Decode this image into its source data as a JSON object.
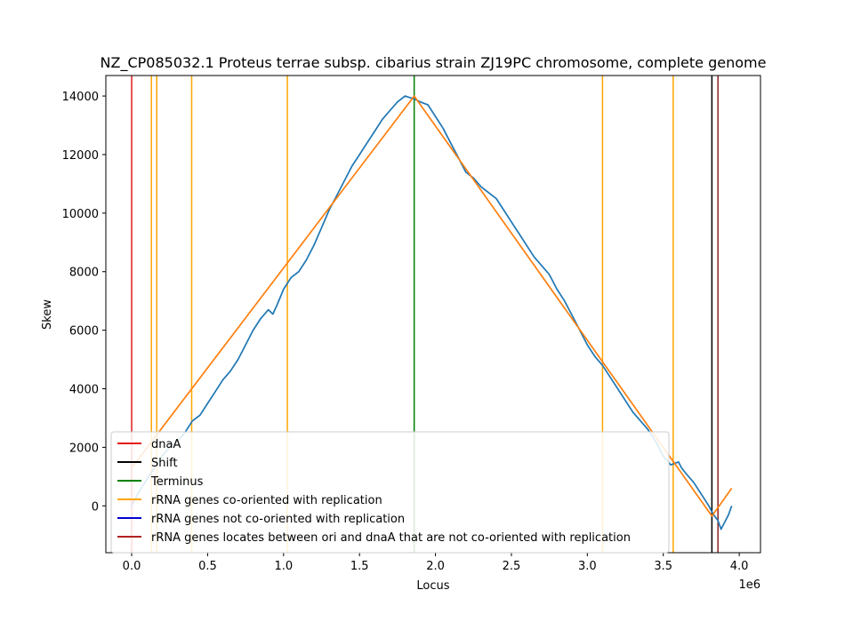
{
  "chart_data": {
    "type": "line",
    "title": "NZ_CP085032.1 Proteus terrae subsp. cibarius strain ZJ19PC chromosome, complete genome",
    "xlabel": "Locus",
    "ylabel": "Skew",
    "x_offset_label": "1e6",
    "xlim": [
      -0.17,
      4.14
    ],
    "ylim": [
      -1600,
      14700
    ],
    "x_scale": 1000000,
    "xticks": [
      0.0,
      0.5,
      1.0,
      1.5,
      2.0,
      2.5,
      3.0,
      3.5,
      4.0
    ],
    "xtick_labels": [
      "0.0",
      "0.5",
      "1.0",
      "1.5",
      "2.0",
      "2.5",
      "3.0",
      "3.5",
      "4.0"
    ],
    "yticks": [
      0,
      2000,
      4000,
      6000,
      8000,
      10000,
      12000,
      14000
    ],
    "ytick_labels": [
      "0",
      "2000",
      "4000",
      "6000",
      "8000",
      "10000",
      "12000",
      "14000"
    ],
    "grid": false,
    "legend_position": "lower-left",
    "series": [
      {
        "color": "#1f77b4",
        "x": [
          0.0,
          0.05,
          0.1,
          0.15,
          0.2,
          0.25,
          0.3,
          0.35,
          0.4,
          0.45,
          0.5,
          0.55,
          0.6,
          0.65,
          0.7,
          0.75,
          0.8,
          0.85,
          0.9,
          0.93,
          0.96,
          1.0,
          1.05,
          1.1,
          1.15,
          1.2,
          1.25,
          1.3,
          1.35,
          1.4,
          1.45,
          1.5,
          1.55,
          1.6,
          1.65,
          1.7,
          1.75,
          1.8,
          1.86,
          1.9,
          1.95,
          2.0,
          2.05,
          2.1,
          2.15,
          2.2,
          2.25,
          2.3,
          2.35,
          2.4,
          2.45,
          2.5,
          2.55,
          2.6,
          2.65,
          2.7,
          2.75,
          2.8,
          2.85,
          2.9,
          2.95,
          3.0,
          3.05,
          3.1,
          3.15,
          3.2,
          3.25,
          3.3,
          3.35,
          3.4,
          3.45,
          3.5,
          3.55,
          3.6,
          3.62,
          3.65,
          3.7,
          3.75,
          3.8,
          3.83,
          3.86,
          3.88,
          3.9,
          3.93,
          3.95
        ],
        "y": [
          0,
          500,
          900,
          1300,
          1700,
          2000,
          2200,
          2500,
          2900,
          3100,
          3500,
          3900,
          4300,
          4600,
          5000,
          5500,
          6000,
          6400,
          6700,
          6550,
          6900,
          7400,
          7800,
          8000,
          8400,
          8900,
          9500,
          10100,
          10600,
          11100,
          11600,
          12000,
          12400,
          12800,
          13200,
          13500,
          13800,
          14000,
          13900,
          13800,
          13700,
          13300,
          12900,
          12400,
          11900,
          11400,
          11200,
          10900,
          10700,
          10500,
          10100,
          9700,
          9300,
          8900,
          8500,
          8200,
          7900,
          7400,
          7000,
          6500,
          6000,
          5500,
          5100,
          4800,
          4400,
          4000,
          3600,
          3200,
          2900,
          2600,
          2200,
          1700,
          1400,
          1500,
          1300,
          1100,
          800,
          400,
          0,
          -300,
          -500,
          -800,
          -600,
          -300,
          0
        ]
      },
      {
        "color": "#ff7f0e",
        "x": [
          0.0,
          1.86,
          3.82,
          3.95
        ],
        "y": [
          1300,
          14000,
          -350,
          600
        ]
      }
    ],
    "vlines": [
      {
        "x": 0.0,
        "color": "#e31a1c"
      },
      {
        "x": 0.13,
        "color": "#ffa500"
      },
      {
        "x": 0.165,
        "color": "#ffa500"
      },
      {
        "x": 0.395,
        "color": "#ffa500"
      },
      {
        "x": 1.025,
        "color": "#ffa500"
      },
      {
        "x": 3.1,
        "color": "#ffa500"
      },
      {
        "x": 3.565,
        "color": "#ffa500"
      },
      {
        "x": 3.82,
        "color": "#000000"
      },
      {
        "x": 3.86,
        "color": "#8b2323"
      },
      {
        "x": 1.86,
        "color": "#008000"
      }
    ],
    "legend": [
      {
        "label": "dnaA",
        "color": "#e31a1c"
      },
      {
        "label": "Shift",
        "color": "#000000"
      },
      {
        "label": "Terminus",
        "color": "#008000"
      },
      {
        "label": "rRNA genes co-oriented with replication",
        "color": "#ffa500"
      },
      {
        "label": "rRNA genes not co-oriented with replication",
        "color": "#0000cd"
      },
      {
        "label": "rRNA genes locates between ori and dnaA that are not co-oriented with replication",
        "color": "#b22222"
      }
    ]
  }
}
